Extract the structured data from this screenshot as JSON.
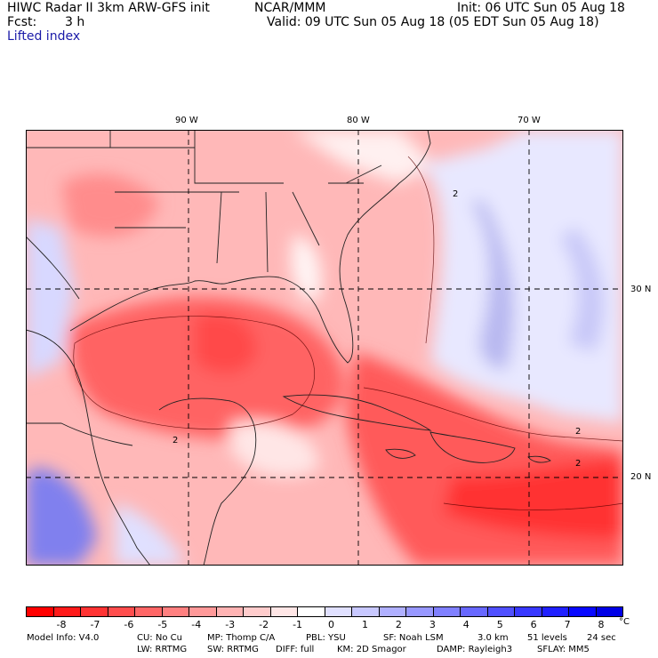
{
  "header": {
    "title": "HIWC Radar II 3km ARW-GFS init",
    "org": "NCAR/MMM",
    "init": "Init: 06 UTC Sun 05 Aug 18",
    "fcst_label": "Fcst:",
    "fcst_value": "3 h",
    "valid": "Valid: 09 UTC Sun 05 Aug 18 (05 EDT Sun 05 Aug 18)",
    "field": "Lifted index"
  },
  "map": {
    "longitudes": [
      "90 W",
      "80 W",
      "70 W"
    ],
    "latitudes": [
      "30 N",
      "20 N"
    ],
    "contour_labels": [
      "2",
      "2",
      "2",
      "2"
    ],
    "colors": {
      "land_outline": "#222222",
      "grid": "#000000"
    }
  },
  "colorbar": {
    "labels": [
      "-8",
      "-7",
      "-6",
      "-5",
      "-4",
      "-3",
      "-2",
      "-1",
      "0",
      "1",
      "2",
      "3",
      "4",
      "5",
      "6",
      "7",
      "8"
    ],
    "unit": "°C",
    "colors": [
      "#ff0000",
      "#ff1a1a",
      "#ff3333",
      "#ff4d4d",
      "#ff6666",
      "#ff8080",
      "#ff9999",
      "#ffb3b3",
      "#ffcccc",
      "#ffe6e6",
      "#ffffff",
      "#e0e0ff",
      "#c8c8ff",
      "#b0b0ff",
      "#9898ff",
      "#8080ff",
      "#6868ff",
      "#5050ff",
      "#3838ff",
      "#2020ff",
      "#0808ff",
      "#0000e6"
    ]
  },
  "footer": {
    "line1": [
      "Model Info: V4.0",
      "CU: No Cu",
      "MP: Thomp C/A",
      "PBL: YSU",
      "SF: Noah LSM",
      "3.0 km",
      "51 levels",
      "24 sec"
    ],
    "line2": [
      "LW: RRTMG",
      "SW: RRTMG",
      "DIFF: full",
      "KM: 2D Smagor",
      "DAMP: Rayleigh3",
      "SFLAY: MM5"
    ]
  }
}
